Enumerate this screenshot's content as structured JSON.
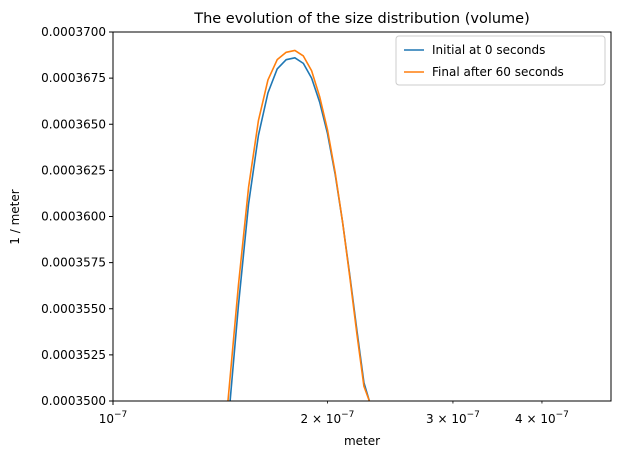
{
  "chart_data": {
    "type": "line",
    "title": "The evolution of the size distribution (volume)",
    "xlabel": "meter",
    "ylabel": "1 / meter",
    "xscale": "log",
    "xlim": [
      1e-07,
      5e-07
    ],
    "ylim": [
      0.00035,
      0.00037
    ],
    "grid": false,
    "legend_position": "top-right",
    "x_ticks": [
      {
        "value": 1e-07,
        "base": "10",
        "exp": "−7"
      },
      {
        "value": 2e-07,
        "base": "2 × 10",
        "exp": "−7"
      },
      {
        "value": 3e-07,
        "base": "3 × 10",
        "exp": "−7"
      },
      {
        "value": 4e-07,
        "base": "4 × 10",
        "exp": "−7"
      }
    ],
    "y_ticks": [
      {
        "value": 0.00035,
        "label": "0.0003500"
      },
      {
        "value": 0.0003525,
        "label": "0.0003525"
      },
      {
        "value": 0.000355,
        "label": "0.0003550"
      },
      {
        "value": 0.0003575,
        "label": "0.0003575"
      },
      {
        "value": 0.00036,
        "label": "0.0003600"
      },
      {
        "value": 0.0003625,
        "label": "0.0003625"
      },
      {
        "value": 0.000365,
        "label": "0.0003650"
      },
      {
        "value": 0.0003675,
        "label": "0.0003675"
      },
      {
        "value": 0.00037,
        "label": "0.0003700"
      }
    ],
    "series": [
      {
        "name": "Initial at 0 seconds",
        "color": "#1f77b4",
        "x": [
          1.46e-07,
          1.5e-07,
          1.55e-07,
          1.6e-07,
          1.65e-07,
          1.7e-07,
          1.75e-07,
          1.8e-07,
          1.85e-07,
          1.9e-07,
          1.95e-07,
          2e-07,
          2.05e-07,
          2.1e-07,
          2.15e-07,
          2.2e-07,
          2.25e-07,
          2.29e-07
        ],
        "y": [
          0.00035,
          0.0003552,
          0.0003607,
          0.0003644,
          0.0003667,
          0.000368,
          0.0003685,
          0.0003686,
          0.0003683,
          0.0003675,
          0.0003662,
          0.0003645,
          0.0003623,
          0.0003597,
          0.0003568,
          0.0003538,
          0.000351,
          0.00035
        ]
      },
      {
        "name": "Final after 60 seconds",
        "color": "#ff7f0e",
        "x": [
          1.45e-07,
          1.5e-07,
          1.55e-07,
          1.6e-07,
          1.65e-07,
          1.7e-07,
          1.75e-07,
          1.8e-07,
          1.85e-07,
          1.9e-07,
          1.95e-07,
          2e-07,
          2.05e-07,
          2.1e-07,
          2.15e-07,
          2.2e-07,
          2.25e-07,
          2.29e-07
        ],
        "y": [
          0.00035,
          0.0003563,
          0.0003616,
          0.0003652,
          0.0003674,
          0.0003685,
          0.0003689,
          0.000369,
          0.0003687,
          0.0003679,
          0.0003665,
          0.0003647,
          0.0003624,
          0.0003597,
          0.0003567,
          0.0003536,
          0.0003508,
          0.00035
        ]
      }
    ]
  }
}
